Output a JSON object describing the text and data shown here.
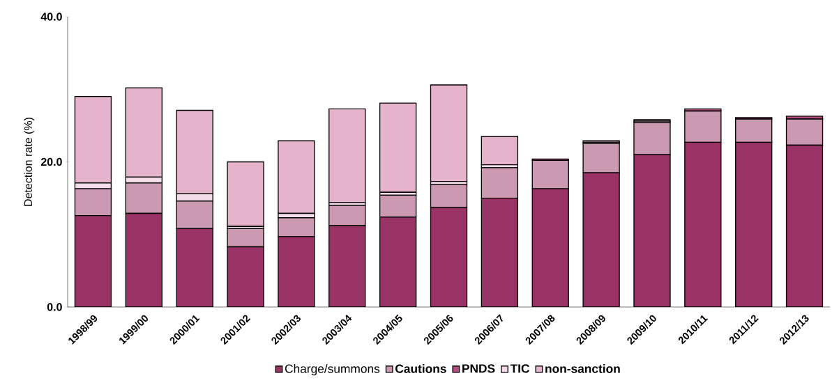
{
  "chart_data": {
    "type": "bar",
    "stacked": true,
    "ylabel": "Detection rate (%)",
    "categories": [
      "1998/99",
      "1999/00",
      "2000/01",
      "2001/02",
      "2002/03",
      "2003/04",
      "2004/05",
      "2005/06",
      "2006/07",
      "2007/08",
      "2008/09",
      "2009/10",
      "2010/11",
      "2011/12",
      "2012/13"
    ],
    "series": [
      {
        "name": "Charge/summons",
        "color": "#993366",
        "values": [
          12.6,
          12.9,
          10.8,
          8.3,
          9.7,
          11.2,
          12.4,
          13.7,
          15.0,
          16.3,
          18.5,
          21.0,
          22.7,
          22.7,
          22.3
        ]
      },
      {
        "name": "Cautions",
        "color": "#cc99b3",
        "values": [
          3.7,
          4.2,
          3.8,
          2.5,
          2.6,
          2.8,
          3.0,
          3.2,
          4.2,
          3.9,
          4.0,
          4.4,
          4.3,
          3.2,
          3.6
        ]
      },
      {
        "name": "PNDS",
        "color": "#b34d80",
        "values": [
          0,
          0,
          0,
          0,
          0,
          0,
          0,
          0,
          0,
          0.2,
          0,
          0,
          0.3,
          0.2,
          0.4
        ]
      },
      {
        "name": "TIC",
        "color": "#f4dce8",
        "values": [
          0.8,
          0.8,
          1.0,
          0.3,
          0.6,
          0.4,
          0.4,
          0.4,
          0.4,
          0,
          0.2,
          0.2,
          0,
          0,
          0
        ]
      },
      {
        "name": "non-sanction",
        "color": "#e6b3cc",
        "values": [
          11.9,
          12.3,
          11.5,
          8.9,
          10.0,
          12.9,
          12.3,
          13.3,
          3.9,
          0,
          0.2,
          0.2,
          0,
          0,
          0
        ]
      }
    ],
    "ylim": [
      0,
      40
    ],
    "yticks": [
      {
        "value": 0,
        "label": "0.0"
      },
      {
        "value": 20,
        "label": "20.0"
      },
      {
        "value": 40,
        "label": "40.0"
      }
    ],
    "legend": "bottom",
    "grid": false
  }
}
